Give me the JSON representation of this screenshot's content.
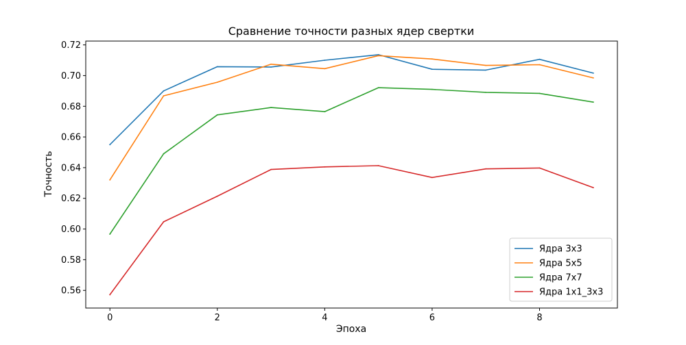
{
  "chart_data": {
    "type": "line",
    "title": "Сравнение точности разных ядер свертки",
    "xlabel": "Эпоха",
    "ylabel": "Точность",
    "xlim": [
      -0.45,
      9.45
    ],
    "ylim": [
      0.5485,
      0.7225
    ],
    "x": [
      0,
      1,
      2,
      3,
      4,
      5,
      6,
      7,
      8,
      9
    ],
    "xticks": [
      0,
      2,
      4,
      6,
      8
    ],
    "xtick_labels": [
      "0",
      "2",
      "4",
      "6",
      "8"
    ],
    "yticks": [
      0.56,
      0.58,
      0.6,
      0.62,
      0.64,
      0.66,
      0.68,
      0.7,
      0.72
    ],
    "ytick_labels": [
      "0.56",
      "0.58",
      "0.60",
      "0.62",
      "0.64",
      "0.66",
      "0.68",
      "0.70",
      "0.72"
    ],
    "grid": false,
    "legend_position": "lower-right",
    "series": [
      {
        "name": "Ядра 3x3",
        "color": "#1f77b4",
        "values": [
          0.655,
          0.69,
          0.7058,
          0.7056,
          0.71,
          0.7136,
          0.7041,
          0.7036,
          0.7106,
          0.7016
        ]
      },
      {
        "name": "Ядра 5x5",
        "color": "#ff7f0e",
        "values": [
          0.632,
          0.6868,
          0.6957,
          0.7074,
          0.7045,
          0.713,
          0.7108,
          0.7066,
          0.7071,
          0.6985
        ]
      },
      {
        "name": "Ядра 7x7",
        "color": "#2ca02c",
        "values": [
          0.5967,
          0.649,
          0.6744,
          0.6792,
          0.6765,
          0.6921,
          0.691,
          0.6891,
          0.6884,
          0.6827
        ]
      },
      {
        "name": "Ядра 1x1_3x3",
        "color": "#d62728",
        "values": [
          0.5572,
          0.6047,
          0.6214,
          0.6388,
          0.6405,
          0.6413,
          0.6336,
          0.6392,
          0.6398,
          0.627
        ]
      }
    ]
  }
}
